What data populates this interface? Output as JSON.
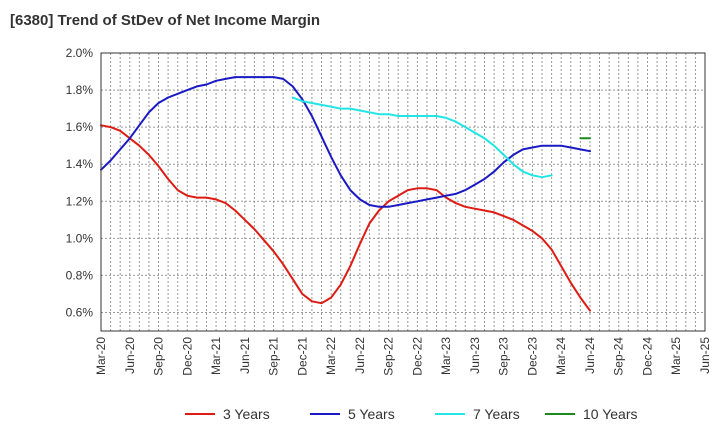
{
  "chart_data": {
    "type": "line",
    "title": "[6380]  Trend of StDev of Net Income Margin",
    "xlabel": "",
    "ylabel": "",
    "ylim": [
      0.5,
      2.0
    ],
    "y_ticks": [
      0.6,
      0.8,
      1.0,
      1.2,
      1.4,
      1.6,
      1.8,
      2.0
    ],
    "y_tick_labels": [
      "0.6%",
      "0.8%",
      "1.0%",
      "1.2%",
      "1.4%",
      "1.6%",
      "1.8%",
      "2.0%"
    ],
    "x_ticks": [
      "Mar-20",
      "Jun-20",
      "Sep-20",
      "Dec-20",
      "Mar-21",
      "Jun-21",
      "Sep-21",
      "Dec-21",
      "Mar-22",
      "Jun-22",
      "Sep-22",
      "Dec-22",
      "Mar-23",
      "Jun-23",
      "Sep-23",
      "Dec-23",
      "Mar-24",
      "Jun-24",
      "Sep-24",
      "Dec-24",
      "Mar-25",
      "Jun-25"
    ],
    "grid": true,
    "legend_position": "bottom",
    "series": [
      {
        "name": "3 Years",
        "color": "#dd1c13",
        "start_index": 0,
        "values": [
          1.61,
          1.6,
          1.58,
          1.54,
          1.5,
          1.45,
          1.39,
          1.32,
          1.26,
          1.23,
          1.22,
          1.22,
          1.21,
          1.19,
          1.15,
          1.1,
          1.05,
          0.99,
          0.93,
          0.86,
          0.78,
          0.7,
          0.66,
          0.65,
          0.68,
          0.75,
          0.85,
          0.97,
          1.08,
          1.15,
          1.2,
          1.23,
          1.26,
          1.27,
          1.27,
          1.26,
          1.22,
          1.19,
          1.17,
          1.16,
          1.15,
          1.14,
          1.12,
          1.1,
          1.07,
          1.04,
          1.0,
          0.94,
          0.85,
          0.76,
          0.68,
          0.61
        ]
      },
      {
        "name": "5 Years",
        "color": "#1a1ac4",
        "start_index": 0,
        "values": [
          1.37,
          1.42,
          1.48,
          1.54,
          1.61,
          1.68,
          1.73,
          1.76,
          1.78,
          1.8,
          1.82,
          1.83,
          1.85,
          1.86,
          1.87,
          1.87,
          1.87,
          1.87,
          1.87,
          1.86,
          1.82,
          1.75,
          1.66,
          1.55,
          1.44,
          1.34,
          1.26,
          1.21,
          1.18,
          1.17,
          1.17,
          1.18,
          1.19,
          1.2,
          1.21,
          1.22,
          1.23,
          1.24,
          1.26,
          1.29,
          1.32,
          1.36,
          1.41,
          1.45,
          1.48,
          1.49,
          1.5,
          1.5,
          1.5,
          1.49,
          1.48,
          1.47
        ]
      },
      {
        "name": "7 Years",
        "color": "#22e5e5",
        "start_index": 20,
        "values": [
          1.76,
          1.74,
          1.73,
          1.72,
          1.71,
          1.7,
          1.7,
          1.69,
          1.68,
          1.67,
          1.67,
          1.66,
          1.66,
          1.66,
          1.66,
          1.66,
          1.65,
          1.63,
          1.6,
          1.57,
          1.54,
          1.5,
          1.45,
          1.4,
          1.36,
          1.34,
          1.33,
          1.34
        ]
      },
      {
        "name": "10 Years",
        "color": "#1e8a1e",
        "start_index": 50,
        "values": [
          1.54,
          1.54
        ]
      }
    ]
  }
}
